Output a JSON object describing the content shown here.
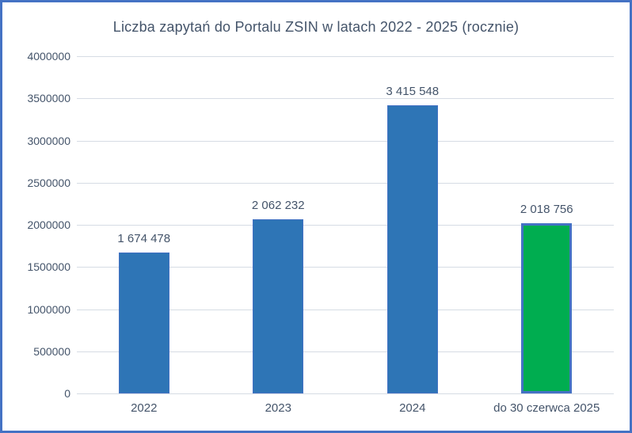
{
  "title": "Liczba zapytań do Portalu ZSIN w latach 2022 - 2025 (rocznie)",
  "colors": {
    "frame_border": "#4472C4",
    "text": "#44546A",
    "gridline": "#D6DCE4",
    "bar_blue": "#2E75B6",
    "bar_green": "#00AD50",
    "bar_border": "#4472C4"
  },
  "chart_data": {
    "type": "bar",
    "title": "Liczba zapytań do Portalu ZSIN w latach 2022 - 2025 (rocznie)",
    "categories": [
      "2022",
      "2023",
      "2024",
      "do 30 czerwca 2025"
    ],
    "values": [
      1674478,
      2062232,
      3415548,
      2018756
    ],
    "value_labels": [
      "1 674 478",
      "2 062 232",
      "3 415 548",
      "2 018 756"
    ],
    "bar_colors": [
      "#2E75B6",
      "#2E75B6",
      "#2E75B6",
      "#00AD50"
    ],
    "bar_border_color": "#4472C4",
    "highlighted_bar": 3,
    "xlabel": "",
    "ylabel": "",
    "ylim": [
      0,
      4000000
    ],
    "yticks": [
      0,
      500000,
      1000000,
      1500000,
      2000000,
      2500000,
      3000000,
      3500000,
      4000000
    ],
    "ytick_labels": [
      "0",
      "500000",
      "1000000",
      "1500000",
      "2000000",
      "2500000",
      "3000000",
      "3500000",
      "4000000"
    ],
    "grid": true,
    "legend": false
  }
}
